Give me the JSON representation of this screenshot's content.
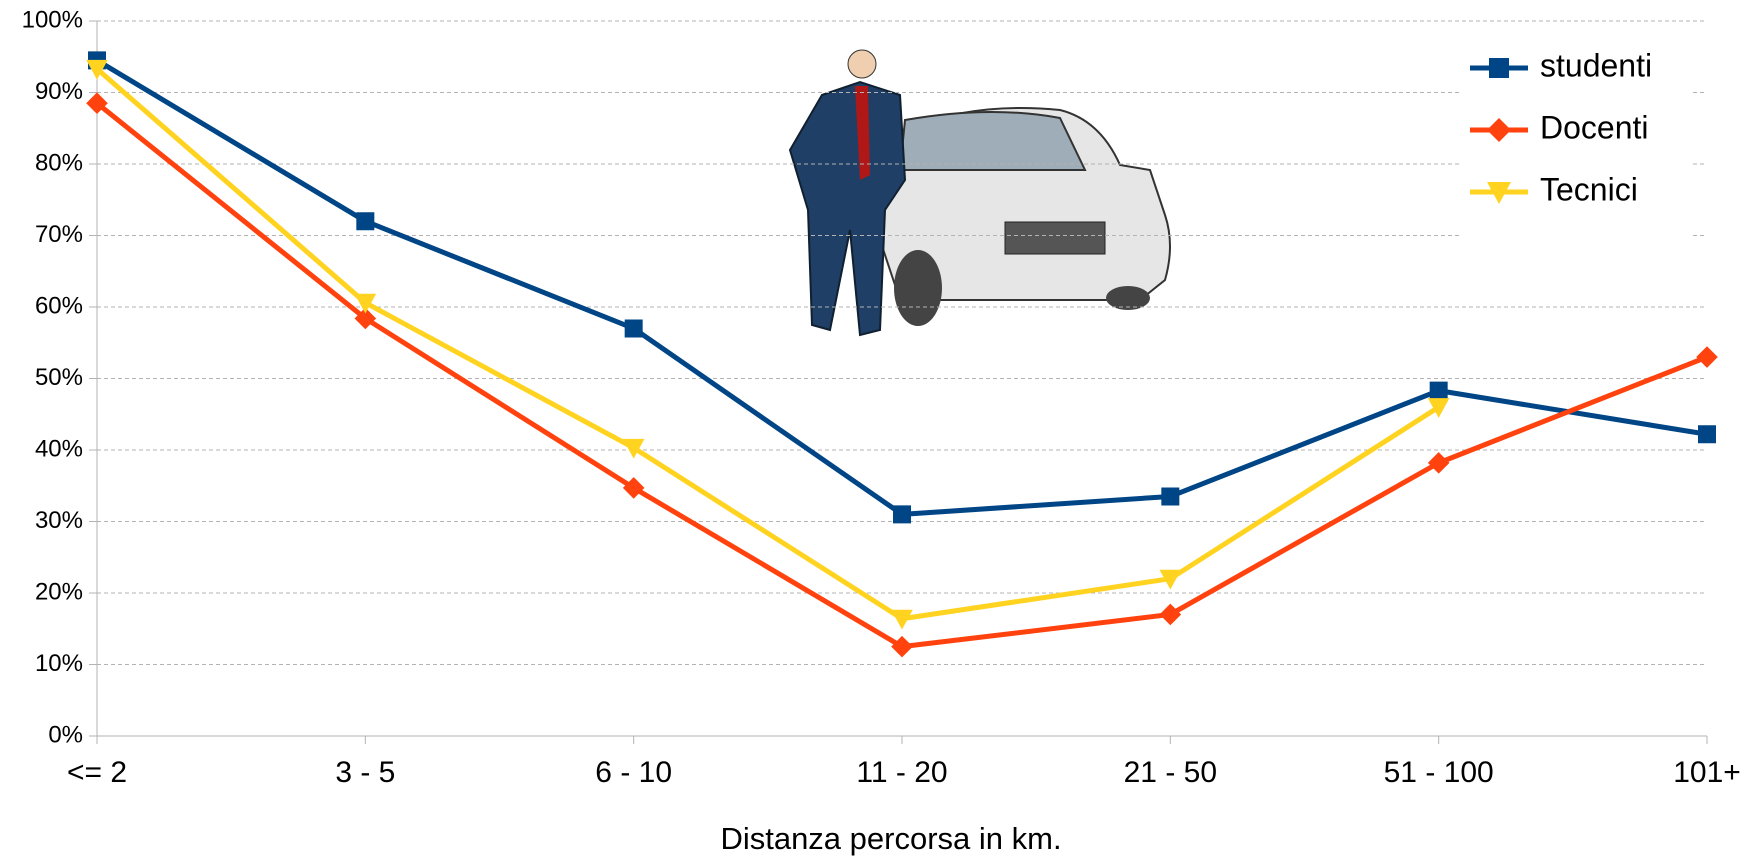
{
  "chart_data": {
    "type": "line",
    "x_label": "Distanza percorsa in km.",
    "categories": [
      "<= 2",
      "3 - 5",
      "6 - 10",
      "11 - 20",
      "21 - 50",
      "51 - 100",
      "101+"
    ],
    "series": [
      {
        "name": "studenti",
        "color": "#004586",
        "marker": "square",
        "values": [
          94.5,
          72,
          57,
          31,
          33.5,
          48.3,
          42.2
        ]
      },
      {
        "name": "Docenti",
        "color": "#ff420e",
        "marker": "diamond",
        "values": [
          88.5,
          58.4,
          34.7,
          12.5,
          17,
          38.2,
          53
        ]
      },
      {
        "name": "Tecnici",
        "color": "#ffd320",
        "marker": "triangle-down",
        "values": [
          93.3,
          60.6,
          40.3,
          16.4,
          22,
          46,
          null
        ]
      }
    ],
    "ylim": [
      0,
      100
    ],
    "yticks": [
      {
        "value": 0,
        "label": "0%"
      },
      {
        "value": 10,
        "label": "10%"
      },
      {
        "value": 20,
        "label": "20%"
      },
      {
        "value": 30,
        "label": "30%"
      },
      {
        "value": 40,
        "label": "40%"
      },
      {
        "value": 50,
        "label": "50%"
      },
      {
        "value": 60,
        "label": "60%"
      },
      {
        "value": 70,
        "label": "70%"
      },
      {
        "value": 80,
        "label": "80%"
      },
      {
        "value": 90,
        "label": "90%"
      },
      {
        "value": 100,
        "label": "100%"
      }
    ],
    "grid": true,
    "legend": "upper right"
  }
}
